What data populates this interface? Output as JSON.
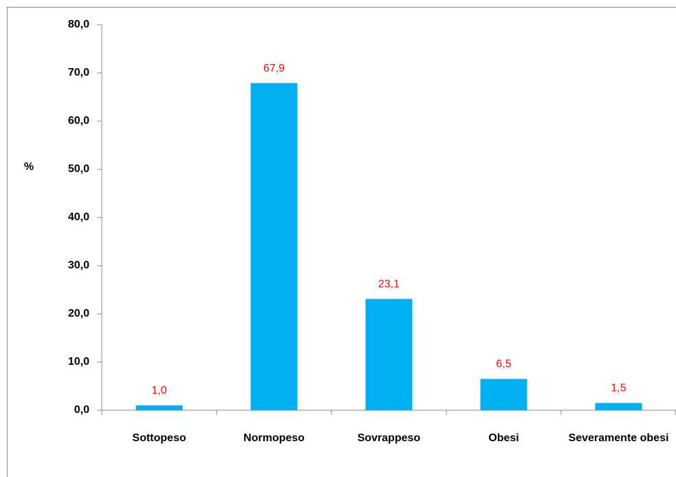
{
  "chart_data": {
    "type": "bar",
    "y_label": "%",
    "categories": [
      "Sottopeso",
      "Normopeso",
      "Sovrappeso",
      "Obesi",
      "Severamente obesi"
    ],
    "values": [
      1.0,
      67.9,
      23.1,
      6.5,
      1.5
    ],
    "value_labels": [
      "1,0",
      "67,9",
      "23,1",
      "6,5",
      "1,5"
    ],
    "color": "#00b0f0",
    "value_label_color": "#ff0000",
    "ylim": [
      0,
      80
    ],
    "yticks": [
      {
        "value": 0,
        "label": "0,0"
      },
      {
        "value": 10,
        "label": "10,0"
      },
      {
        "value": 20,
        "label": "20,0"
      },
      {
        "value": 30,
        "label": "30,0"
      },
      {
        "value": 40,
        "label": "40,0"
      },
      {
        "value": 50,
        "label": "50,0"
      },
      {
        "value": 60,
        "label": "60,0"
      },
      {
        "value": 70,
        "label": "70,0"
      },
      {
        "value": 80,
        "label": "80,0"
      }
    ],
    "grid": false
  }
}
